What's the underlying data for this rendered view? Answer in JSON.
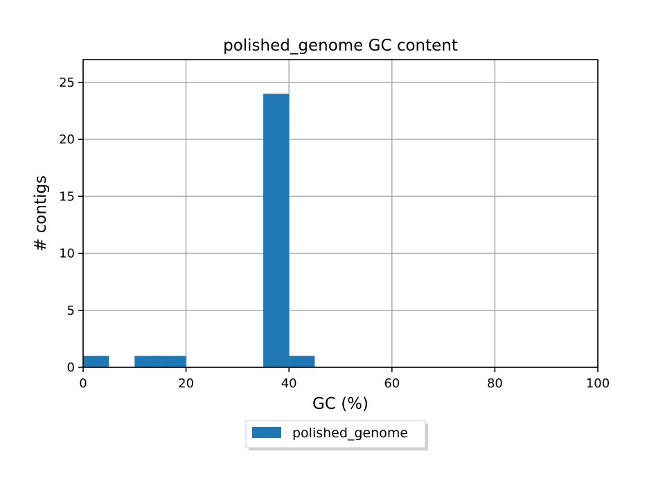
{
  "chart_data": {
    "type": "bar",
    "title": "polished_genome GC content",
    "xlabel": "GC (%)",
    "ylabel": "# contigs",
    "xlim": [
      0,
      100
    ],
    "ylim": [
      0,
      27
    ],
    "xticks": [
      0,
      20,
      40,
      60,
      80,
      100
    ],
    "yticks": [
      0,
      5,
      10,
      15,
      20,
      25
    ],
    "grid": true,
    "legend_position": "bottom-center",
    "series": [
      {
        "name": "polished_genome",
        "color": "#1f77b4",
        "bins": [
          {
            "x0": 0,
            "x1": 5,
            "count": 1
          },
          {
            "x0": 5,
            "x1": 10,
            "count": 0
          },
          {
            "x0": 10,
            "x1": 15,
            "count": 1
          },
          {
            "x0": 15,
            "x1": 20,
            "count": 1
          },
          {
            "x0": 20,
            "x1": 25,
            "count": 0
          },
          {
            "x0": 25,
            "x1": 30,
            "count": 0
          },
          {
            "x0": 30,
            "x1": 35,
            "count": 0
          },
          {
            "x0": 35,
            "x1": 40,
            "count": 24
          },
          {
            "x0": 40,
            "x1": 45,
            "count": 1
          }
        ]
      }
    ]
  }
}
